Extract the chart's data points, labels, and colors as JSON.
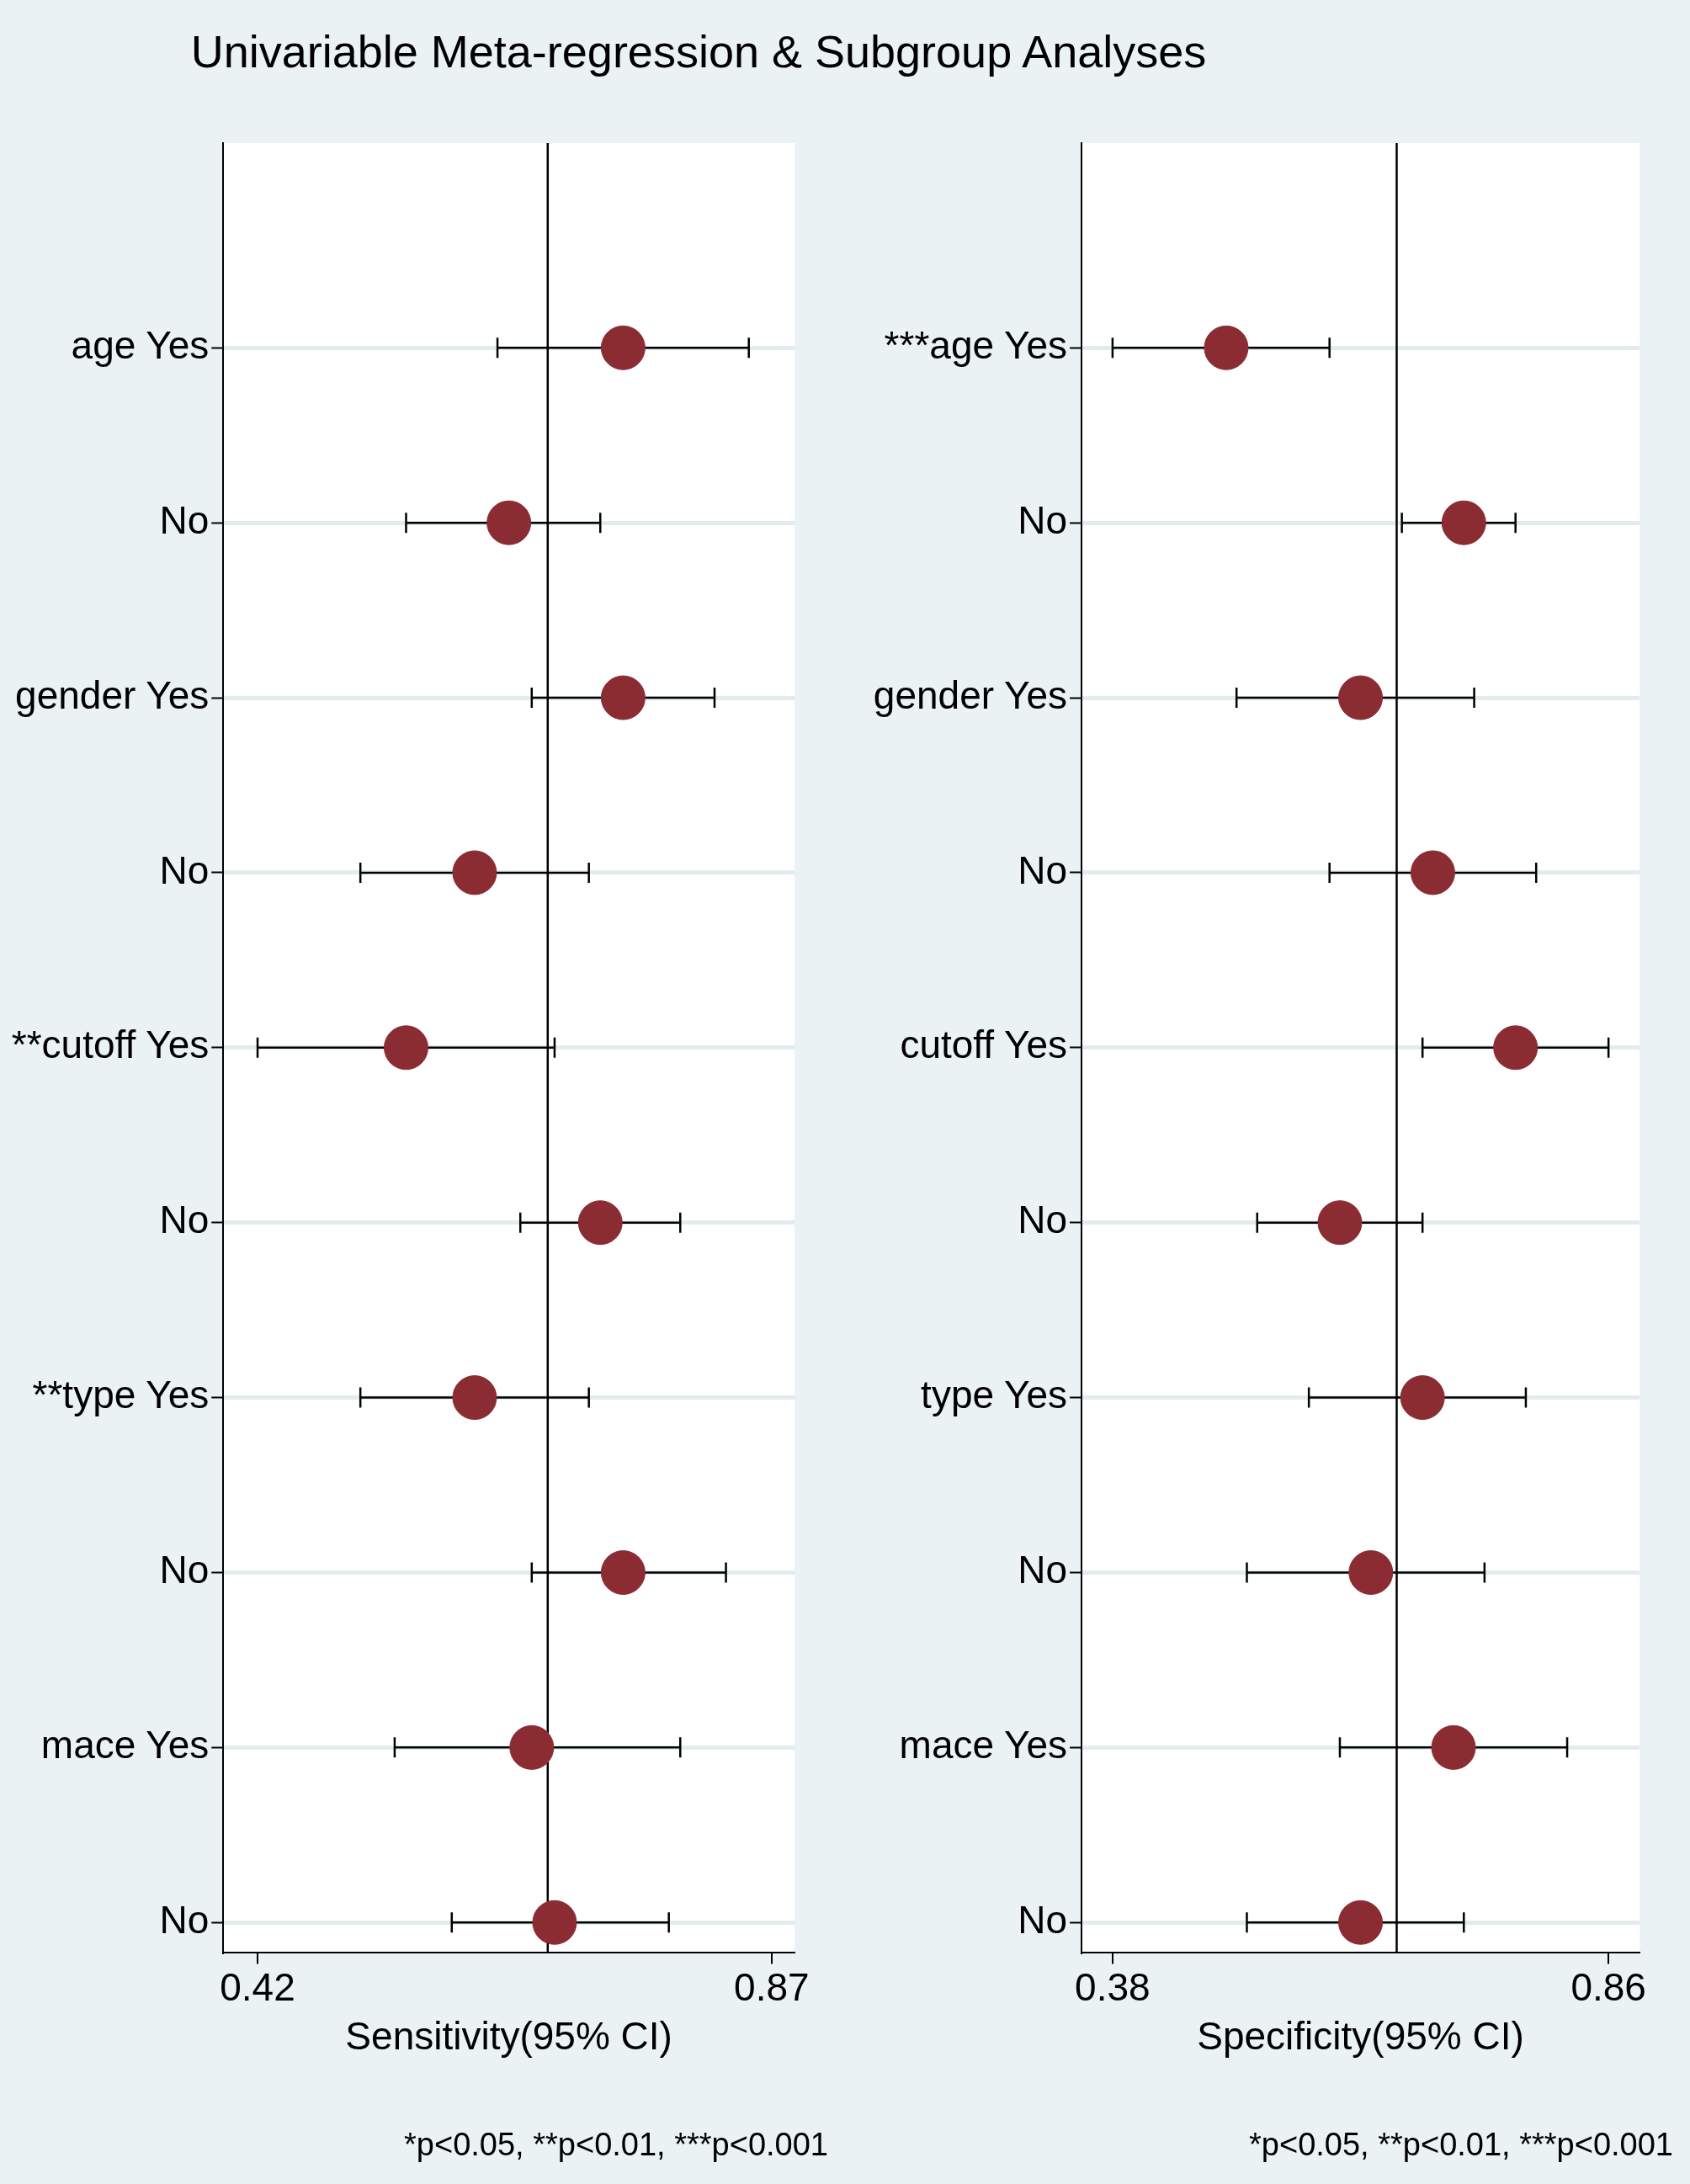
{
  "chart_data": [
    {
      "type": "scatter",
      "title": "Univariable Meta-regression & Subgroup Analyses",
      "orientation": "horizontal",
      "xlabel": "Sensitivity(95% CI)",
      "annotations": [
        "*p<0.05, **p<0.01, ***p<0.001"
      ],
      "categories": [
        "age Yes",
        "No",
        "gender Yes",
        "No",
        "**cutoff Yes",
        "No",
        "**type Yes",
        "No",
        "mace Yes",
        "No"
      ],
      "series": [
        {
          "color": "#8b2c33",
          "values": [
            0.74,
            0.64,
            0.74,
            0.61,
            0.55,
            0.72,
            0.61,
            0.74,
            0.66,
            0.68
          ],
          "errors": [
            [
              0.63,
              0.85
            ],
            [
              0.55,
              0.72
            ],
            [
              0.66,
              0.82
            ],
            [
              0.51,
              0.71
            ],
            [
              0.42,
              0.68
            ],
            [
              0.65,
              0.79
            ],
            [
              0.51,
              0.71
            ],
            [
              0.66,
              0.83
            ],
            [
              0.54,
              0.79
            ],
            [
              0.59,
              0.78
            ]
          ]
        }
      ],
      "ref_lines": [
        {
          "axis": "x",
          "value": 0.674,
          "color": "#000000"
        }
      ],
      "xlim": [
        0.39,
        0.89
      ],
      "xticks": [
        0.42,
        0.87
      ],
      "grid": "y",
      "marker": "circle",
      "legend": false
    },
    {
      "type": "scatter",
      "orientation": "horizontal",
      "xlabel": "Specificity(95% CI)",
      "annotations": [
        "*p<0.05, **p<0.01, ***p<0.001"
      ],
      "categories": [
        "***age Yes",
        "No",
        "gender Yes",
        "No",
        "cutoff Yes",
        "No",
        "type Yes",
        "No",
        "mace Yes",
        "No"
      ],
      "series": [
        {
          "color": "#8b2c33",
          "values": [
            0.49,
            0.72,
            0.62,
            0.69,
            0.77,
            0.6,
            0.68,
            0.63,
            0.71,
            0.62
          ],
          "errors": [
            [
              0.38,
              0.59
            ],
            [
              0.66,
              0.77
            ],
            [
              0.5,
              0.73
            ],
            [
              0.59,
              0.79
            ],
            [
              0.68,
              0.86
            ],
            [
              0.52,
              0.68
            ],
            [
              0.57,
              0.78
            ],
            [
              0.51,
              0.74
            ],
            [
              0.6,
              0.82
            ],
            [
              0.51,
              0.72
            ]
          ]
        }
      ],
      "ref_lines": [
        {
          "axis": "x",
          "value": 0.655,
          "color": "#000000"
        }
      ],
      "xlim": [
        0.35,
        0.89
      ],
      "xticks": [
        0.38,
        0.86
      ],
      "grid": "y",
      "marker": "circle",
      "legend": false
    }
  ]
}
